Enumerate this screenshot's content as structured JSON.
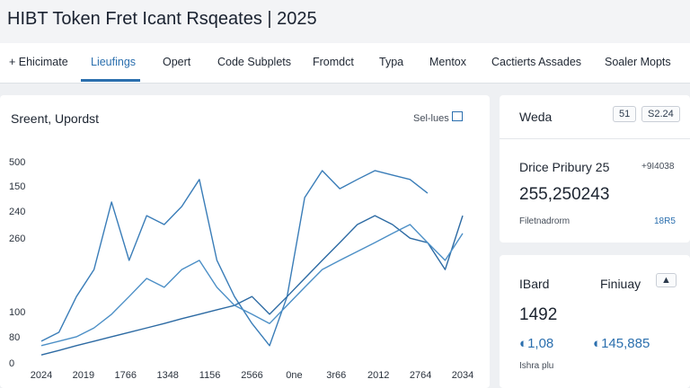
{
  "header": {
    "title": "HIBT Token Fret Icant Rsqeates | 2025"
  },
  "nav": {
    "tabs": [
      "+ Ehicimate",
      "Lieufings",
      "Opert",
      "Code Subplets",
      "Fromdct",
      "Typa",
      "Mentox",
      "Cactierts Assades",
      "Soaler Mopts"
    ]
  },
  "panel": {
    "title": "Sreent, Upordst",
    "button": "Sel-lues"
  },
  "chart_data": {
    "type": "line",
    "x": [
      0,
      1,
      2,
      3,
      4,
      5,
      6,
      7,
      8,
      9,
      10,
      11,
      12,
      13,
      14,
      15,
      16,
      17,
      18,
      19,
      20,
      21,
      22,
      23,
      24
    ],
    "xlim": [
      0,
      24
    ],
    "xticks": [
      {
        "value": 0,
        "label": "2024"
      },
      {
        "value": 2.4,
        "label": "2019"
      },
      {
        "value": 4.8,
        "label": "1766"
      },
      {
        "value": 7.2,
        "label": "1348"
      },
      {
        "value": 9.6,
        "label": "1156"
      },
      {
        "value": 12,
        "label": "2566"
      },
      {
        "value": 14.4,
        "label": "0ne"
      },
      {
        "value": 16.8,
        "label": "3r66"
      },
      {
        "value": 19.2,
        "label": "2012"
      },
      {
        "value": 21.6,
        "label": "2764"
      },
      {
        "value": 24,
        "label": "2034"
      }
    ],
    "ylim": [
      0,
      500
    ],
    "yticks": [
      0,
      {
        "value": 65,
        "label": "80"
      },
      {
        "value": 127,
        "label": "100"
      },
      {
        "value": 310,
        "label": "260"
      },
      {
        "value": 377,
        "label": "240"
      },
      {
        "value": 440,
        "label": "150"
      },
      500
    ],
    "series": [
      {
        "color": "#3a7db8",
        "values": [
          56,
          78,
          167,
          234,
          402,
          257,
          368,
          346,
          391,
          458,
          257,
          167,
          100,
          45,
          167,
          413,
          480,
          435,
          458,
          480,
          469,
          458,
          424,
          null,
          null
        ]
      },
      {
        "color": "#2c6aa3",
        "values": [
          22,
          33,
          45,
          56,
          67,
          78,
          89,
          100,
          112,
          123,
          134,
          145,
          167,
          123,
          167,
          212,
          257,
          301,
          346,
          368,
          346,
          312,
          301,
          234,
          368
        ]
      },
      {
        "color": "#4c8fc6",
        "values": [
          45,
          56,
          67,
          89,
          123,
          167,
          212,
          190,
          234,
          257,
          190,
          145,
          123,
          100,
          145,
          190,
          234,
          257,
          279,
          301,
          324,
          346,
          301,
          257,
          324
        ]
      }
    ]
  },
  "card1": {
    "title": "Weda",
    "buttons": [
      "51",
      "S2.24"
    ],
    "label": "Drice Pribury 25",
    "change": "+9I4038",
    "value": "255,250243",
    "footer": "Filetnadrorm",
    "footer_value": "18R5"
  },
  "card2": {
    "title": "IBard",
    "subtitle": "Finiuay",
    "value": "1492",
    "stat1": "1,08",
    "stat2": "145,885",
    "footer": "Ishra plu"
  }
}
